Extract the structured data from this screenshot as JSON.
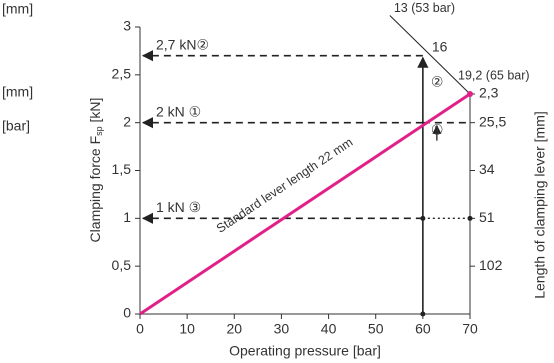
{
  "chart_data": {
    "type": "line",
    "left_labels": [
      "[mm]",
      "[mm]",
      "[bar]"
    ],
    "y_label": [
      "Clamping force F",
      "sp",
      " [kN]"
    ],
    "x_label": "Operating pressure [bar]",
    "y2_label": "Length of clamping lever [mm]",
    "x": [
      0,
      70
    ],
    "values": [
      0,
      2.3
    ],
    "color": "#e0218a",
    "xlim": [
      0,
      70
    ],
    "xticks": [
      0,
      10,
      20,
      30,
      40,
      50,
      60,
      70
    ],
    "ylim": [
      0,
      3
    ],
    "yticks": [
      0,
      {
        "value": 0.5,
        "label": "0,5"
      },
      1,
      {
        "value": 1.5,
        "label": "1,5"
      },
      2,
      {
        "value": 2.5,
        "label": "2,5"
      },
      3
    ],
    "y2_labels": [
      {
        "value": 2.3,
        "label": "2,3"
      },
      {
        "value": 2,
        "label": "25,5"
      },
      {
        "value": 1.5,
        "label": "34"
      },
      {
        "value": 1,
        "label": "51"
      },
      {
        "value": 0.5,
        "label": "102"
      }
    ],
    "inner_label": {
      "value": 2.7,
      "label": "16"
    },
    "annotation": "Standard lever length 22 mm",
    "reading_pressure": 60,
    "readings": [
      {
        "force": 2.7,
        "label": "2,7 kN②"
      },
      {
        "force": 2,
        "label": "2 kN ①"
      },
      {
        "force": 1,
        "label": "1 kN ③"
      }
    ],
    "markers": [
      "①",
      "②"
    ],
    "limit_line": {
      "x": [
        53,
        70
      ],
      "values": [
        3.12,
        2.3
      ],
      "labels": [
        "13 (53 bar)",
        "19,2 (65 bar)"
      ]
    }
  }
}
